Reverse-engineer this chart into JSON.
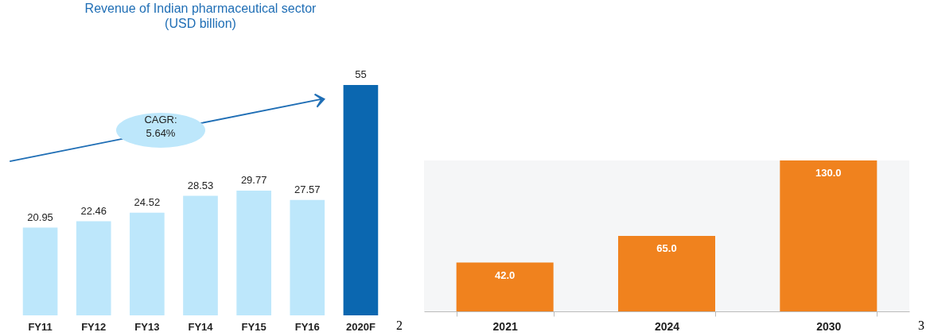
{
  "chart_data": [
    {
      "type": "bar",
      "title": "Revenue of Indian pharmaceutical sector",
      "subtitle": "(USD billion)",
      "categories": [
        "FY11",
        "FY12",
        "FY13",
        "FY14",
        "FY15",
        "FY16",
        "2020F"
      ],
      "values": [
        20.95,
        22.46,
        24.52,
        28.53,
        29.77,
        27.57,
        55
      ],
      "colors": [
        "#bde7fb",
        "#bde7fb",
        "#bde7fb",
        "#bde7fb",
        "#bde7fb",
        "#bde7fb",
        "#0b67b0"
      ],
      "data_labels": true,
      "annotations": [
        "CAGR: 5.64%",
        "2"
      ]
    },
    {
      "type": "bar",
      "categories": [
        "2021",
        "2024",
        "2030"
      ],
      "values": [
        42,
        65,
        130
      ],
      "color": "#f0821e",
      "value_labels": [
        "42.0",
        "65.0",
        "130.0"
      ],
      "annotations": [
        "3"
      ]
    }
  ]
}
